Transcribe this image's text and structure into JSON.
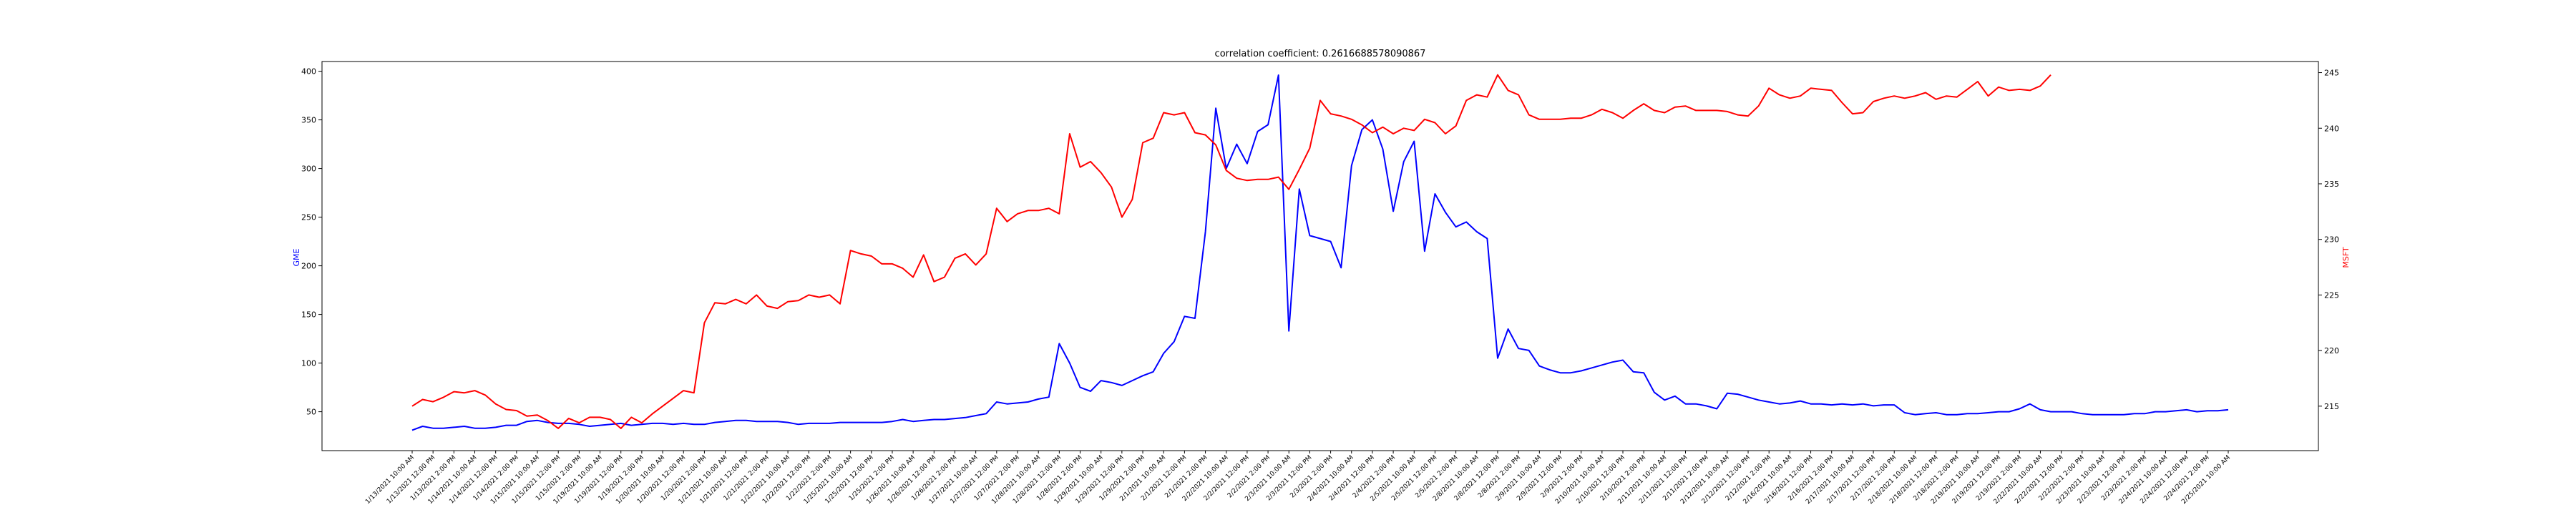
{
  "chart_data": {
    "type": "line",
    "title": "correlation coefficient: 0.2616688578090867",
    "y_left_label": "GME",
    "y_right_label": "MSFT",
    "ylim_left": [
      10,
      410
    ],
    "ylim_right": [
      211,
      246
    ],
    "y_left_ticks": [
      50,
      100,
      150,
      200,
      250,
      300,
      350,
      400
    ],
    "y_right_ticks": [
      215,
      220,
      225,
      230,
      235,
      240,
      245
    ],
    "x_tick_labels": [
      "1/13/2021 10:00 AM",
      "1/13/2021 12:00 PM",
      "1/13/2021 2:00 PM",
      "1/14/2021 10:00 AM",
      "1/14/2021 12:00 PM",
      "1/14/2021 2:00 PM",
      "1/15/2021 10:00 AM",
      "1/15/2021 12:00 PM",
      "1/15/2021 2:00 PM",
      "1/19/2021 10:00 AM",
      "1/19/2021 12:00 PM",
      "1/19/2021 2:00 PM",
      "1/20/2021 10:00 AM",
      "1/20/2021 12:00 PM",
      "1/20/2021 2:00 PM",
      "1/21/2021 10:00 AM",
      "1/21/2021 12:00 PM",
      "1/21/2021 2:00 PM",
      "1/22/2021 10:00 AM",
      "1/22/2021 12:00 PM",
      "1/22/2021 2:00 PM",
      "1/25/2021 10:00 AM",
      "1/25/2021 12:00 PM",
      "1/25/2021 2:00 PM",
      "1/26/2021 10:00 AM",
      "1/26/2021 12:00 PM",
      "1/26/2021 2:00 PM",
      "1/27/2021 10:00 AM",
      "1/27/2021 12:00 PM",
      "1/27/2021 2:00 PM",
      "1/28/2021 10:00 AM",
      "1/28/2021 12:00 PM",
      "1/28/2021 2:00 PM",
      "1/29/2021 10:00 AM",
      "1/29/2021 12:00 PM",
      "1/29/2021 2:00 PM",
      "2/1/2021 10:00 AM",
      "2/1/2021 12:00 PM",
      "2/1/2021 2:00 PM",
      "2/2/2021 10:00 AM",
      "2/2/2021 12:00 PM",
      "2/2/2021 2:00 PM",
      "2/3/2021 10:00 AM",
      "2/3/2021 12:00 PM",
      "2/3/2021 2:00 PM",
      "2/4/2021 10:00 AM",
      "2/4/2021 12:00 PM",
      "2/4/2021 2:00 PM",
      "2/5/2021 10:00 AM",
      "2/5/2021 12:00 PM",
      "2/5/2021 2:00 PM",
      "2/8/2021 10:00 AM",
      "2/8/2021 12:00 PM",
      "2/8/2021 2:00 PM",
      "2/9/2021 10:00 AM",
      "2/9/2021 12:00 PM",
      "2/9/2021 2:00 PM",
      "2/10/2021 10:00 AM",
      "2/10/2021 12:00 PM",
      "2/10/2021 2:00 PM",
      "2/11/2021 10:00 AM",
      "2/11/2021 12:00 PM",
      "2/11/2021 2:00 PM",
      "2/12/2021 10:00 AM",
      "2/12/2021 12:00 PM",
      "2/12/2021 2:00 PM",
      "2/16/2021 10:00 AM",
      "2/16/2021 12:00 PM",
      "2/16/2021 2:00 PM",
      "2/17/2021 10:00 AM",
      "2/17/2021 12:00 PM",
      "2/17/2021 2:00 PM",
      "2/18/2021 10:00 AM",
      "2/18/2021 12:00 PM",
      "2/18/2021 2:00 PM",
      "2/19/2021 10:00 AM",
      "2/19/2021 12:00 PM",
      "2/19/2021 2:00 PM",
      "2/22/2021 10:00 AM",
      "2/22/2021 12:00 PM",
      "2/22/2021 2:00 PM",
      "2/23/2021 10:00 AM",
      "2/23/2021 12:00 PM",
      "2/23/2021 2:00 PM",
      "2/24/2021 10:00 AM",
      "2/24/2021 12:00 PM",
      "2/24/2021 2:00 PM",
      "2/25/2021 10:00 AM",
      "2/25/2021 12:00 PM",
      "2/25/2021 2:00 PM",
      "2/26/2021 10:00 AM",
      "2/26/2021 12:00 PM",
      "2/26/2021 2:00 PM"
    ],
    "series": [
      {
        "name": "GME",
        "color": "#0000ff",
        "axis": "left",
        "values": [
          31,
          35,
          33,
          33,
          34,
          35,
          33,
          33,
          34,
          36,
          36,
          40,
          41,
          39,
          38,
          38,
          37,
          35,
          36,
          37,
          38,
          36,
          37,
          38,
          38,
          37,
          38,
          37,
          37,
          39,
          40,
          41,
          41,
          40,
          40,
          40,
          39,
          37,
          38,
          38,
          38,
          39,
          39,
          39,
          39,
          39,
          40,
          42,
          40,
          41,
          42,
          42,
          43,
          44,
          46,
          48,
          60,
          58,
          59,
          60,
          63,
          65,
          120,
          100,
          75,
          71,
          82,
          80,
          77,
          82,
          87,
          91,
          110,
          122,
          148,
          146,
          235,
          362,
          300,
          325,
          305,
          338,
          345,
          396,
          133,
          279,
          231,
          228,
          225,
          198,
          303,
          340,
          350,
          320,
          256,
          307,
          328,
          215,
          274,
          255,
          240,
          245,
          235,
          228,
          105,
          135,
          115,
          113,
          97,
          93,
          90,
          90,
          92,
          95,
          98,
          101,
          103,
          91,
          90,
          70,
          62,
          66,
          58,
          58,
          56,
          53,
          69,
          68,
          65,
          62,
          60,
          58,
          59,
          61,
          58,
          58,
          57,
          58,
          57,
          58,
          56,
          57,
          57,
          49,
          47,
          48,
          49,
          47,
          47,
          48,
          48,
          49,
          50,
          50,
          53,
          58,
          52,
          50,
          50,
          50,
          48,
          47,
          47,
          47,
          47,
          48,
          48,
          50,
          50,
          51,
          52,
          50,
          51,
          51,
          52
        ]
      },
      {
        "name": "MSFT",
        "color": "#ff0000",
        "axis": "right",
        "values": [
          215.0,
          215.6,
          215.4,
          215.8,
          216.3,
          216.2,
          216.4,
          216.0,
          215.2,
          214.7,
          214.6,
          214.1,
          214.2,
          213.7,
          213.0,
          213.9,
          213.5,
          214.0,
          214.0,
          213.8,
          213.0,
          214.0,
          213.5,
          214.3,
          215.0,
          215.7,
          216.4,
          216.2,
          222.5,
          224.3,
          224.2,
          224.6,
          224.2,
          225.0,
          224.0,
          223.8,
          224.4,
          224.5,
          225.0,
          224.8,
          225.0,
          224.2,
          229.0,
          228.7,
          228.5,
          227.8,
          227.8,
          227.4,
          226.6,
          228.6,
          226.2,
          226.6,
          228.3,
          228.7,
          227.7,
          228.7,
          232.8,
          231.6,
          232.3,
          232.6,
          232.6,
          232.8,
          232.3,
          239.5,
          236.5,
          237.0,
          236.0,
          234.7,
          232.0,
          233.6,
          238.7,
          239.1,
          241.4,
          241.2,
          241.4,
          239.6,
          239.4,
          238.5,
          236.2,
          235.5,
          235.3,
          235.4,
          235.4,
          235.6,
          234.5,
          236.3,
          238.2,
          242.5,
          241.3,
          241.1,
          240.8,
          240.3,
          239.6,
          240.1,
          239.5,
          240.0,
          239.8,
          240.8,
          240.5,
          239.5,
          240.2,
          242.5,
          243.0,
          242.8,
          244.8,
          243.4,
          243.0,
          241.2,
          240.8,
          240.8,
          240.8,
          240.9,
          240.9,
          241.2,
          241.7,
          241.4,
          240.9,
          241.6,
          242.2,
          241.6,
          241.4,
          241.9,
          242.0,
          241.6,
          241.6,
          241.6,
          241.5,
          241.2,
          241.1,
          242.0,
          243.6,
          243.0,
          242.7,
          242.9,
          243.6,
          243.5,
          243.4,
          242.3,
          241.3,
          241.4,
          242.4,
          242.7,
          242.9,
          242.7,
          242.9,
          243.2,
          242.6,
          242.9,
          242.8,
          243.5,
          244.2,
          242.9,
          243.7,
          243.4,
          243.5,
          243.4,
          243.8,
          244.8
        ]
      }
    ]
  }
}
